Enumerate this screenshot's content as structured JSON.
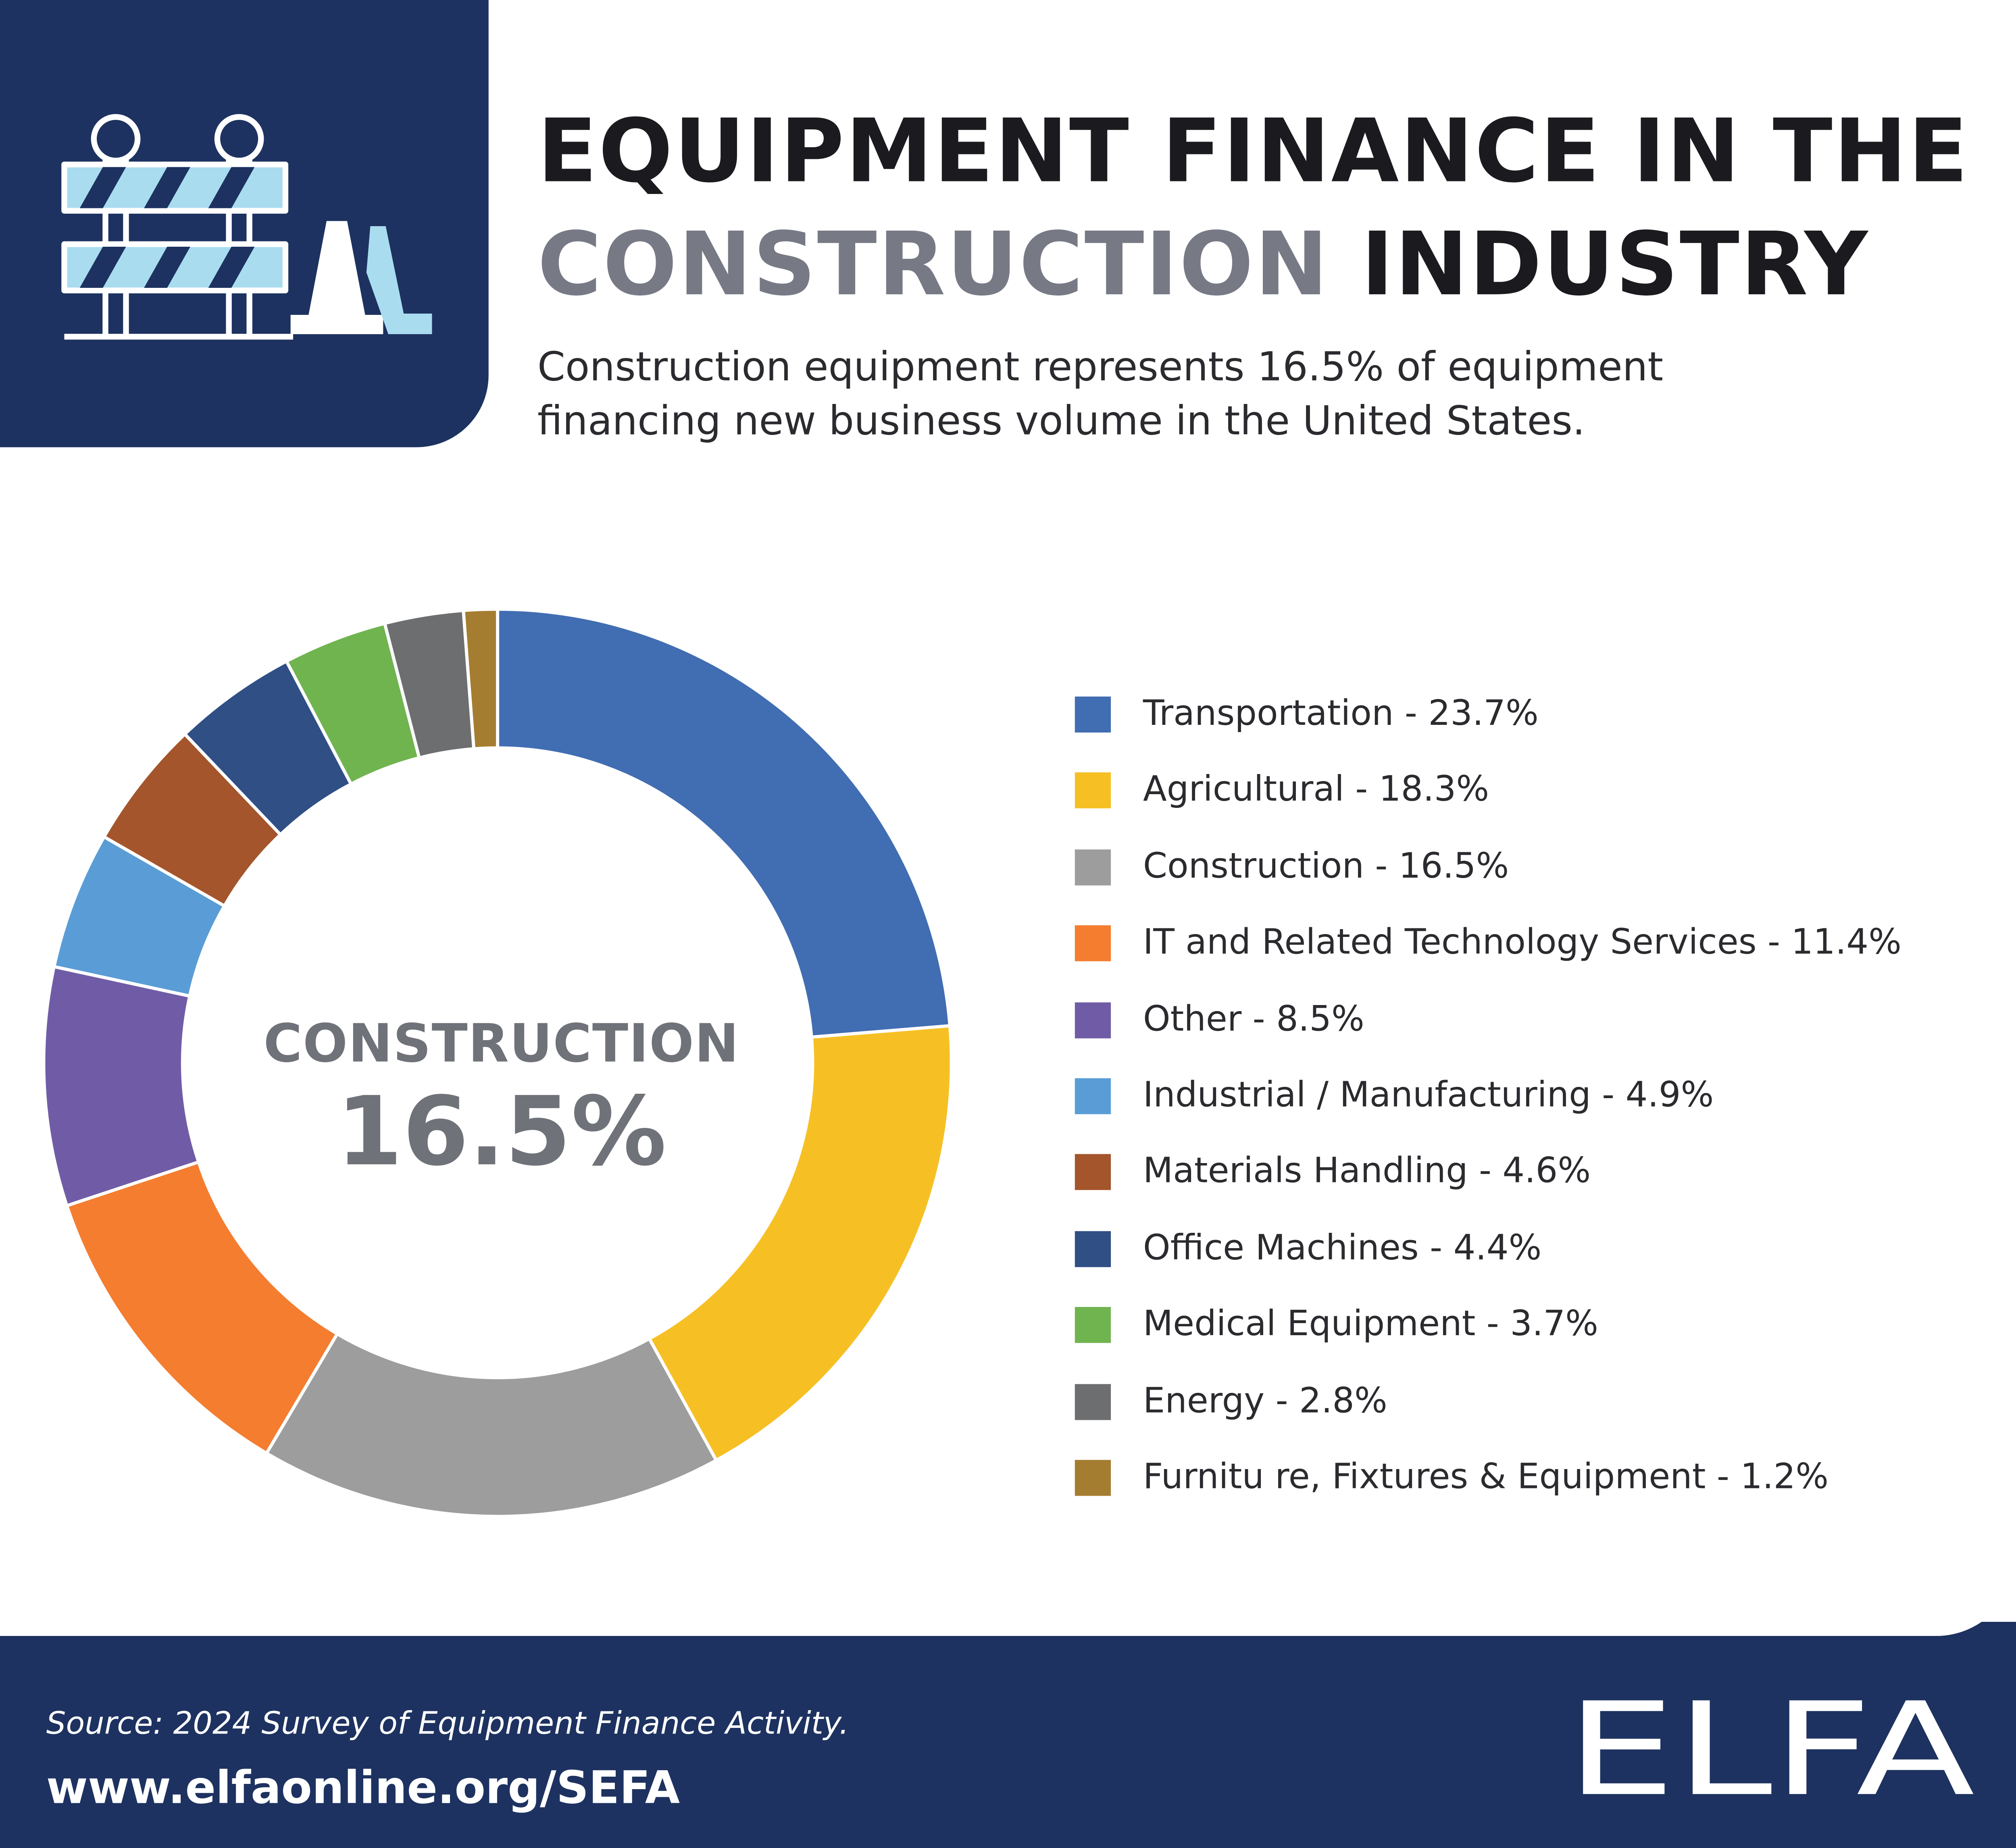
{
  "header": {
    "title_line1": "EQUIPMENT FINANCE IN THE",
    "title_line2_accent": "CONSTRUCTION",
    "title_line2_rest": "INDUSTRY",
    "subtitle": "Construction equipment represents 16.5% of equipment financing new business volume in the United States.",
    "icon": "road-barrier-with-cones-icon"
  },
  "chart_data": {
    "type": "pie",
    "donut": true,
    "center_label": "CONSTRUCTION",
    "center_value": "16.5%",
    "legend_position": "right",
    "slices": [
      {
        "label": "Transportation - 23.7%",
        "value": 23.7,
        "color": "#416db2"
      },
      {
        "label": "Agricultural - 18.3%",
        "value": 18.3,
        "color": "#f6c025"
      },
      {
        "label": "Construction - 16.5%",
        "value": 16.5,
        "color": "#9c9d9c"
      },
      {
        "label": "IT and Related Technology Services - 11.4%",
        "value": 11.4,
        "color": "#f47d30"
      },
      {
        "label": "Other - 8.5%",
        "value": 8.5,
        "color": "#705ca6"
      },
      {
        "label": "Industrial / Manufacturing - 4.9%",
        "value": 4.9,
        "color": "#5a9dd6"
      },
      {
        "label": "Materials Handling - 4.6%",
        "value": 4.6,
        "color": "#a4552b"
      },
      {
        "label": "Office Machines - 4.4%",
        "value": 4.4,
        "color": "#2f4f85"
      },
      {
        "label": "Medical Equipment - 3.7%",
        "value": 3.7,
        "color": "#70b450"
      },
      {
        "label": "Energy - 2.8%",
        "value": 2.8,
        "color": "#6d6e70"
      },
      {
        "label": "Furnitu re, Fixtures & Equipment - 1.2%",
        "value": 1.2,
        "color": "#a57d31"
      }
    ]
  },
  "footer": {
    "source": "Source: 2024 Survey of Equipment Finance Activity.",
    "url": "www.elfaonline.org/SEFA",
    "logo": "ELFA"
  },
  "colors": {
    "navy": "#1d3260",
    "accent_gray": "#777a85",
    "icon_light_blue": "#a9dcef"
  }
}
